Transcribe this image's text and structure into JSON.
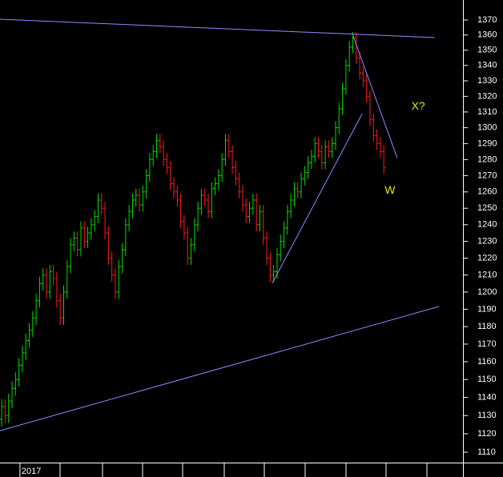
{
  "chart_data": {
    "type": "ohlc",
    "log": true,
    "up_color": "#00dd00",
    "down_color": "#ff1a1a",
    "xlim": [
      -0.5,
      134
    ],
    "ylim": [
      1104.4,
      1383.4
    ],
    "yticks": [
      1110,
      1120,
      1130,
      1140,
      1150,
      1160,
      1170,
      1180,
      1190,
      1200,
      1210,
      1220,
      1230,
      1240,
      1250,
      1260,
      1270,
      1280,
      1290,
      1300,
      1310,
      1320,
      1330,
      1340,
      1350,
      1360,
      1370
    ],
    "xticks": [
      {
        "value": 5.3,
        "label": "2017"
      }
    ],
    "open": [
      1128,
      1135,
      1130,
      1138,
      1145,
      1150,
      1158,
      1165,
      1172,
      1178,
      1185,
      1195,
      1205,
      1210,
      1200,
      1212,
      1208,
      1195,
      1185,
      1200,
      1215,
      1228,
      1232,
      1225,
      1238,
      1230,
      1235,
      1240,
      1245,
      1255,
      1250,
      1235,
      1220,
      1210,
      1200,
      1215,
      1225,
      1240,
      1248,
      1255,
      1258,
      1252,
      1260,
      1270,
      1280,
      1285,
      1292,
      1288,
      1280,
      1275,
      1265,
      1260,
      1255,
      1242,
      1235,
      1220,
      1228,
      1240,
      1250,
      1258,
      1255,
      1248,
      1262,
      1265,
      1270,
      1280,
      1292,
      1285,
      1275,
      1268,
      1260,
      1252,
      1245,
      1250,
      1255,
      1240,
      1248,
      1232,
      1220,
      1210,
      1212,
      1222,
      1230,
      1238,
      1248,
      1255,
      1262,
      1260,
      1268,
      1272,
      1278,
      1282,
      1290,
      1285,
      1278,
      1288,
      1285,
      1290,
      1300,
      1312,
      1325,
      1340,
      1352,
      1358,
      1345,
      1335,
      1330,
      1320,
      1305,
      1295,
      1290,
      1285
    ],
    "high": [
      1139,
      1139,
      1142,
      1149,
      1154,
      1162,
      1169,
      1176,
      1182,
      1189,
      1199,
      1209,
      1214,
      1214,
      1216,
      1216,
      1212,
      1199,
      1204,
      1219,
      1232,
      1236,
      1236,
      1242,
      1242,
      1239,
      1244,
      1249,
      1259,
      1259,
      1254,
      1239,
      1224,
      1214,
      1219,
      1229,
      1244,
      1252,
      1259,
      1262,
      1262,
      1264,
      1274,
      1284,
      1289,
      1296,
      1296,
      1292,
      1284,
      1279,
      1269,
      1264,
      1259,
      1246,
      1239,
      1232,
      1244,
      1254,
      1262,
      1262,
      1259,
      1266,
      1269,
      1274,
      1284,
      1296,
      1296,
      1289,
      1279,
      1272,
      1264,
      1256,
      1254,
      1259,
      1259,
      1252,
      1252,
      1236,
      1224,
      1216,
      1226,
      1234,
      1242,
      1252,
      1259,
      1266,
      1266,
      1272,
      1276,
      1282,
      1286,
      1294,
      1294,
      1289,
      1292,
      1292,
      1294,
      1304,
      1316,
      1329,
      1344,
      1356,
      1362,
      1362,
      1349,
      1339,
      1334,
      1324,
      1309,
      1299,
      1294,
      1289
    ],
    "low": [
      1124,
      1126,
      1126,
      1134,
      1141,
      1146,
      1154,
      1161,
      1168,
      1174,
      1181,
      1191,
      1201,
      1196,
      1196,
      1204,
      1191,
      1181,
      1181,
      1196,
      1211,
      1224,
      1221,
      1221,
      1226,
      1226,
      1231,
      1236,
      1241,
      1246,
      1231,
      1216,
      1206,
      1196,
      1196,
      1211,
      1221,
      1236,
      1244,
      1251,
      1248,
      1248,
      1256,
      1266,
      1276,
      1281,
      1284,
      1276,
      1271,
      1261,
      1256,
      1251,
      1238,
      1231,
      1216,
      1216,
      1224,
      1236,
      1246,
      1251,
      1244,
      1244,
      1258,
      1261,
      1266,
      1276,
      1281,
      1271,
      1264,
      1256,
      1248,
      1241,
      1241,
      1246,
      1236,
      1236,
      1228,
      1216,
      1206,
      1206,
      1208,
      1218,
      1226,
      1234,
      1244,
      1251,
      1256,
      1256,
      1264,
      1268,
      1274,
      1278,
      1281,
      1274,
      1274,
      1281,
      1281,
      1286,
      1296,
      1308,
      1321,
      1336,
      1348,
      1341,
      1331,
      1326,
      1316,
      1301,
      1291,
      1286,
      1281,
      1271
    ],
    "close": [
      1135,
      1130,
      1138,
      1145,
      1150,
      1158,
      1165,
      1172,
      1178,
      1185,
      1195,
      1205,
      1210,
      1200,
      1212,
      1208,
      1195,
      1185,
      1200,
      1215,
      1228,
      1232,
      1225,
      1238,
      1230,
      1235,
      1240,
      1245,
      1255,
      1250,
      1235,
      1220,
      1210,
      1200,
      1215,
      1225,
      1240,
      1248,
      1255,
      1258,
      1252,
      1260,
      1270,
      1280,
      1285,
      1292,
      1288,
      1280,
      1275,
      1265,
      1260,
      1255,
      1242,
      1235,
      1220,
      1228,
      1240,
      1250,
      1258,
      1255,
      1248,
      1262,
      1265,
      1270,
      1280,
      1292,
      1285,
      1275,
      1268,
      1260,
      1252,
      1245,
      1250,
      1255,
      1240,
      1248,
      1232,
      1220,
      1210,
      1212,
      1222,
      1230,
      1238,
      1248,
      1255,
      1262,
      1260,
      1268,
      1272,
      1278,
      1282,
      1290,
      1285,
      1278,
      1288,
      1285,
      1290,
      1300,
      1312,
      1325,
      1340,
      1352,
      1358,
      1345,
      1335,
      1330,
      1320,
      1305,
      1295,
      1290,
      1285,
      1275
    ],
    "trend_lines": [
      {
        "color": "#8c8cff",
        "x": [
          -0.5,
          125.8
        ],
        "y": [
          1370.5,
          1358.3
        ]
      },
      {
        "color": "#8c8cff",
        "x": [
          -0.5,
          127
        ],
        "y": [
          1121.7,
          1191.6
        ]
      },
      {
        "color": "#8c8cff",
        "x": [
          78.6,
          104.7
        ],
        "y": [
          1205.2,
          1308.8
        ]
      },
      {
        "color": "#8c8cff",
        "x": [
          102.1,
          114.9
        ],
        "y": [
          1359.4,
          1281
        ]
      }
    ],
    "annotations": [
      {
        "text": "X?",
        "x": 121,
        "y": 1313.4,
        "color": "#e6e600"
      },
      {
        "text": "W",
        "x": 112.8,
        "y": 1260.6,
        "color": "#e6e600"
      }
    ]
  }
}
